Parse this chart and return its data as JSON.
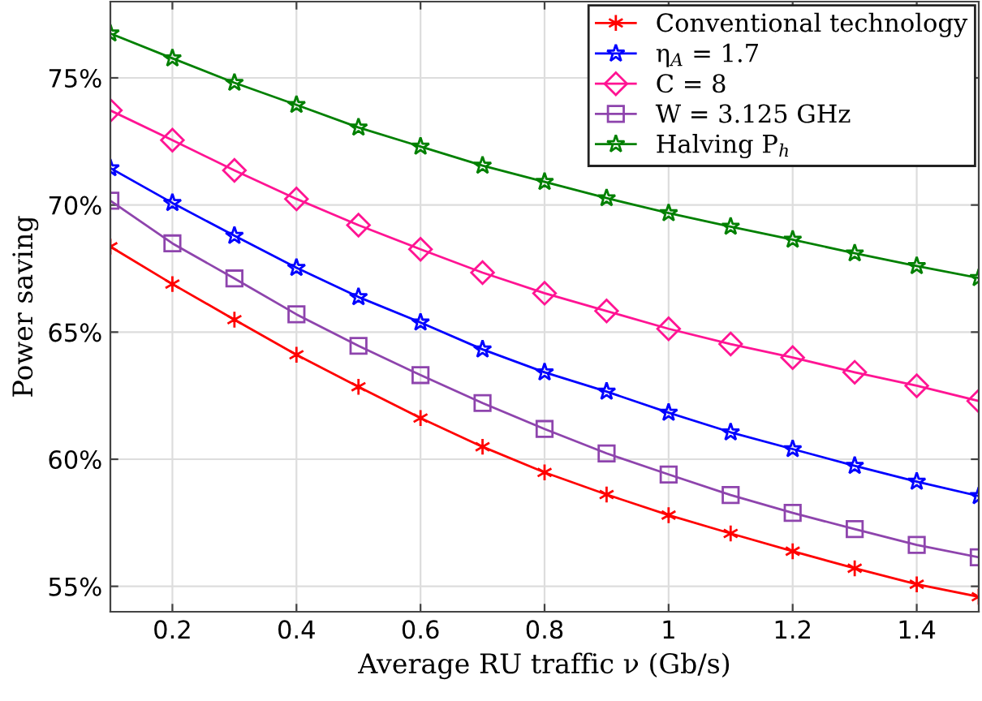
{
  "chart_data": {
    "type": "line",
    "xlabel": "Average RU traffic ν (Gb/s)",
    "ylabel": "Power saving",
    "x": [
      0.1,
      0.2,
      0.3,
      0.4,
      0.5,
      0.6,
      0.7,
      0.8,
      0.9,
      1.0,
      1.1,
      1.2,
      1.3,
      1.4,
      1.5
    ],
    "series": [
      {
        "name": "Conventional technology",
        "color": "#ff0000",
        "marker": "cross",
        "values": [
          68.36,
          66.89,
          65.49,
          64.11,
          62.85,
          61.62,
          60.49,
          59.48,
          58.61,
          57.8,
          57.08,
          56.38,
          55.71,
          55.08,
          54.59
        ]
      },
      {
        "name": "η$_{A}$ = 1.7",
        "color": "#0000ff",
        "marker": "star",
        "values": [
          71.45,
          70.08,
          68.79,
          67.53,
          66.38,
          65.38,
          64.32,
          63.42,
          62.66,
          61.83,
          61.06,
          60.4,
          59.74,
          59.12,
          58.55
        ]
      },
      {
        "name": "C = 8",
        "color": "#ff1493",
        "marker": "diamond",
        "values": [
          73.72,
          72.55,
          71.36,
          70.24,
          69.21,
          68.26,
          67.34,
          66.53,
          65.83,
          65.13,
          64.53,
          64.0,
          63.42,
          62.89,
          62.29
        ]
      },
      {
        "name": "W = 3.125 GHz",
        "color": "#8e44ad",
        "marker": "square",
        "values": [
          70.17,
          68.49,
          67.11,
          65.7,
          64.46,
          63.31,
          62.21,
          61.19,
          60.23,
          59.4,
          58.59,
          57.89,
          57.25,
          56.63,
          56.14
        ]
      },
      {
        "name": "Halving P$_{h}$",
        "color": "#008000",
        "marker": "star",
        "values": [
          76.75,
          75.77,
          74.81,
          73.94,
          73.05,
          72.3,
          71.55,
          70.91,
          70.27,
          69.68,
          69.15,
          68.64,
          68.1,
          67.6,
          67.13
        ]
      }
    ],
    "xlim": [
      0.1,
      1.5
    ],
    "xticks": [
      0.2,
      0.4,
      0.6,
      0.8,
      1,
      1.2,
      1.4
    ],
    "ylim": [
      54,
      78
    ],
    "yticks": [
      {
        "value": 55,
        "label": "55%"
      },
      {
        "value": 60,
        "label": "60%"
      },
      {
        "value": 65,
        "label": "65%"
      },
      {
        "value": 70,
        "label": "70%"
      },
      {
        "value": 75,
        "label": "75%"
      }
    ],
    "grid": true,
    "legend": "top right",
    "line_style": "solid"
  }
}
